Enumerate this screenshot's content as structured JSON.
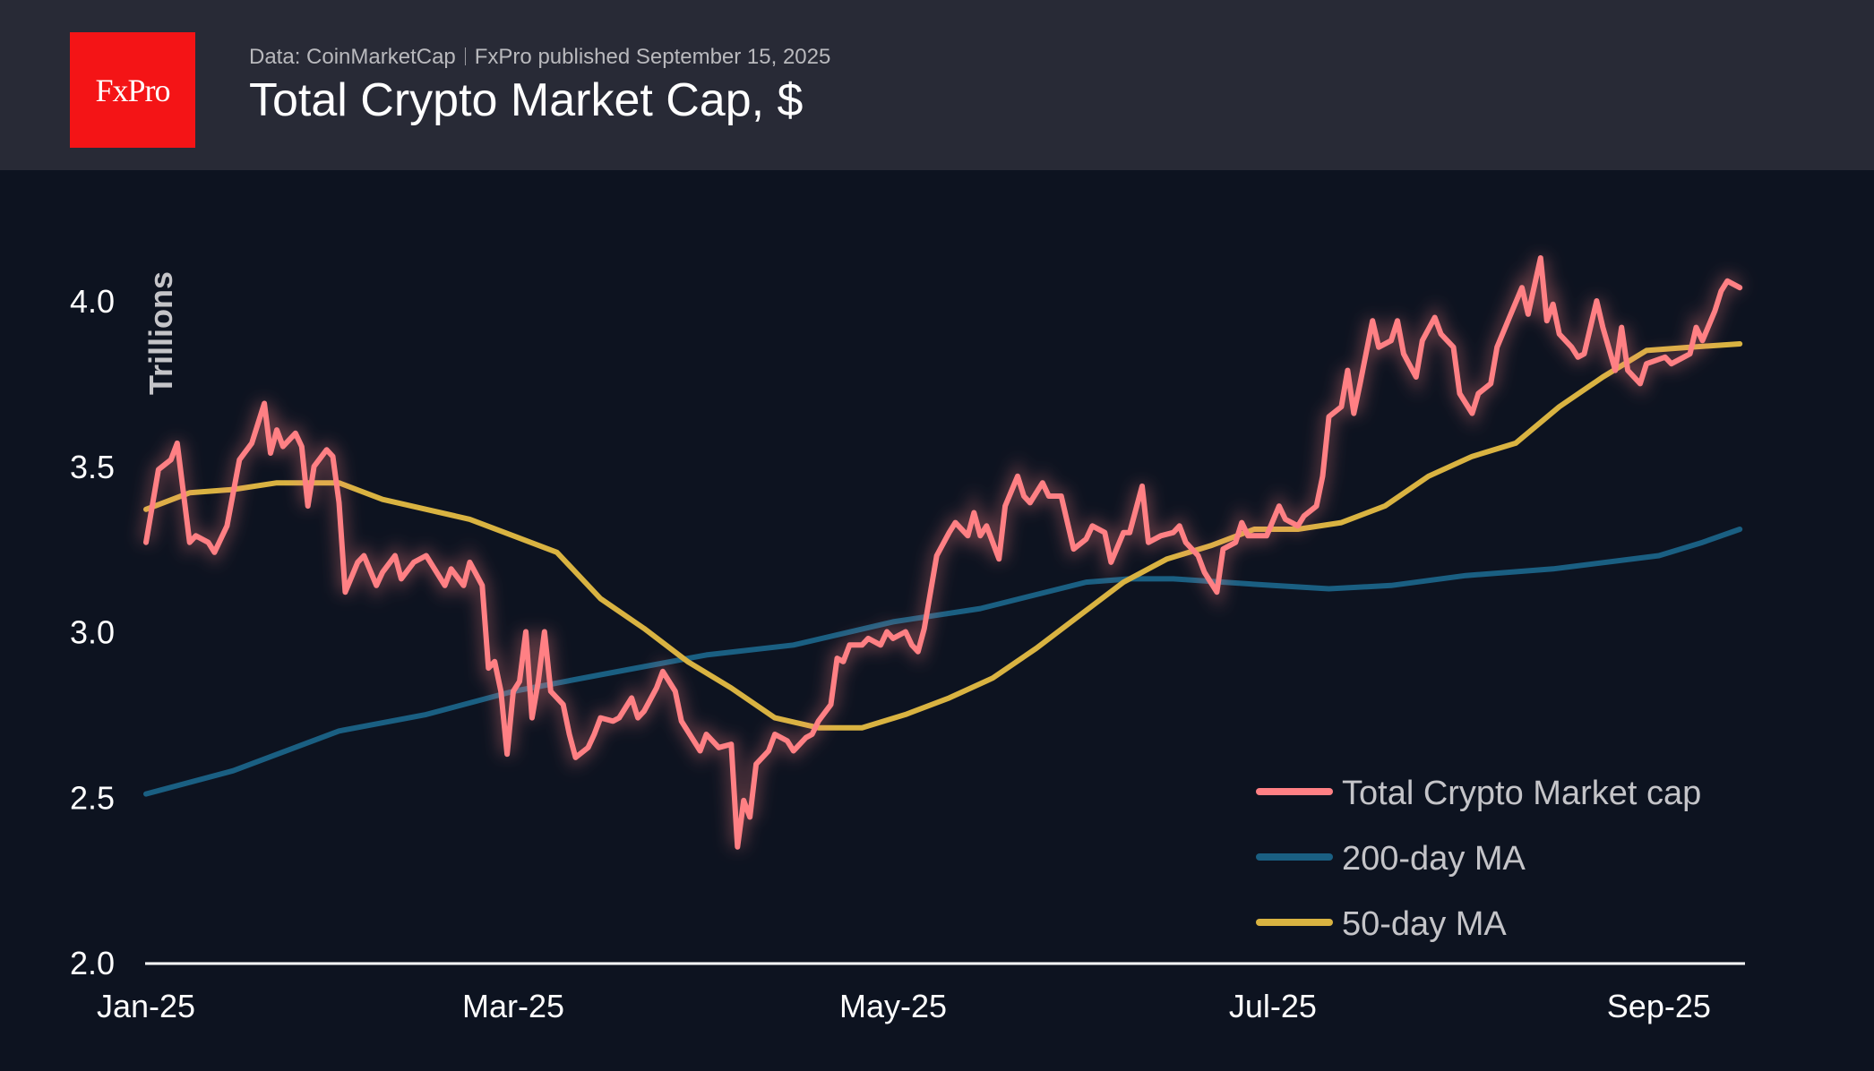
{
  "header": {
    "logo_text": "FxPro",
    "source": "Data: CoinMarketCap",
    "published": "FxPro published September 15, 2025",
    "title": "Total Crypto Market Cap, $"
  },
  "chart_data": {
    "type": "line",
    "title": "Total Crypto Market Cap, $",
    "ylabel": "Trillions",
    "xlabel": "",
    "ylim": [
      2.0,
      4.25
    ],
    "xlim": [
      "2025-01-01",
      "2025-09-14"
    ],
    "yticks": [
      "2.0",
      "2.5",
      "3.0",
      "3.5",
      "4.0"
    ],
    "xticks": [
      {
        "label": "Jan-25",
        "date": "2025-01-01"
      },
      {
        "label": "Mar-25",
        "date": "2025-03-01"
      },
      {
        "label": "May-25",
        "date": "2025-05-01"
      },
      {
        "label": "Jul-25",
        "date": "2025-07-01"
      },
      {
        "label": "Sep-25",
        "date": "2025-09-01"
      }
    ],
    "grid": false,
    "legend_position": "bottom-right",
    "series": [
      {
        "name": "Total Crypto Market cap",
        "color": "#ff8084",
        "points": [
          [
            "2025-01-01",
            3.27
          ],
          [
            "2025-01-03",
            3.49
          ],
          [
            "2025-01-05",
            3.52
          ],
          [
            "2025-01-06",
            3.57
          ],
          [
            "2025-01-08",
            3.27
          ],
          [
            "2025-01-09",
            3.29
          ],
          [
            "2025-01-11",
            3.27
          ],
          [
            "2025-01-12",
            3.24
          ],
          [
            "2025-01-14",
            3.32
          ],
          [
            "2025-01-16",
            3.52
          ],
          [
            "2025-01-18",
            3.57
          ],
          [
            "2025-01-20",
            3.69
          ],
          [
            "2025-01-21",
            3.54
          ],
          [
            "2025-01-22",
            3.61
          ],
          [
            "2025-01-23",
            3.56
          ],
          [
            "2025-01-25",
            3.6
          ],
          [
            "2025-01-26",
            3.56
          ],
          [
            "2025-01-27",
            3.38
          ],
          [
            "2025-01-28",
            3.5
          ],
          [
            "2025-01-30",
            3.55
          ],
          [
            "2025-01-31",
            3.53
          ],
          [
            "2025-02-01",
            3.39
          ],
          [
            "2025-02-02",
            3.12
          ],
          [
            "2025-02-04",
            3.21
          ],
          [
            "2025-02-05",
            3.23
          ],
          [
            "2025-02-07",
            3.14
          ],
          [
            "2025-02-08",
            3.18
          ],
          [
            "2025-02-10",
            3.23
          ],
          [
            "2025-02-11",
            3.16
          ],
          [
            "2025-02-13",
            3.21
          ],
          [
            "2025-02-15",
            3.23
          ],
          [
            "2025-02-18",
            3.14
          ],
          [
            "2025-02-19",
            3.19
          ],
          [
            "2025-02-21",
            3.14
          ],
          [
            "2025-02-22",
            3.21
          ],
          [
            "2025-02-24",
            3.14
          ],
          [
            "2025-02-25",
            2.89
          ],
          [
            "2025-02-26",
            2.91
          ],
          [
            "2025-02-27",
            2.82
          ],
          [
            "2025-02-28",
            2.63
          ],
          [
            "2025-03-01",
            2.82
          ],
          [
            "2025-03-02",
            2.85
          ],
          [
            "2025-03-03",
            3.0
          ],
          [
            "2025-03-04",
            2.74
          ],
          [
            "2025-03-05",
            2.85
          ],
          [
            "2025-03-06",
            3.0
          ],
          [
            "2025-03-07",
            2.82
          ],
          [
            "2025-03-09",
            2.78
          ],
          [
            "2025-03-10",
            2.69
          ],
          [
            "2025-03-11",
            2.62
          ],
          [
            "2025-03-13",
            2.65
          ],
          [
            "2025-03-14",
            2.69
          ],
          [
            "2025-03-15",
            2.74
          ],
          [
            "2025-03-17",
            2.73
          ],
          [
            "2025-03-18",
            2.74
          ],
          [
            "2025-03-20",
            2.8
          ],
          [
            "2025-03-21",
            2.74
          ],
          [
            "2025-03-22",
            2.76
          ],
          [
            "2025-03-24",
            2.83
          ],
          [
            "2025-03-25",
            2.88
          ],
          [
            "2025-03-27",
            2.82
          ],
          [
            "2025-03-28",
            2.73
          ],
          [
            "2025-03-30",
            2.67
          ],
          [
            "2025-03-31",
            2.64
          ],
          [
            "2025-04-01",
            2.69
          ],
          [
            "2025-04-03",
            2.65
          ],
          [
            "2025-04-05",
            2.66
          ],
          [
            "2025-04-06",
            2.35
          ],
          [
            "2025-04-07",
            2.49
          ],
          [
            "2025-04-08",
            2.44
          ],
          [
            "2025-04-09",
            2.6
          ],
          [
            "2025-04-11",
            2.64
          ],
          [
            "2025-04-12",
            2.69
          ],
          [
            "2025-04-14",
            2.67
          ],
          [
            "2025-04-15",
            2.64
          ],
          [
            "2025-04-17",
            2.68
          ],
          [
            "2025-04-18",
            2.69
          ],
          [
            "2025-04-19",
            2.73
          ],
          [
            "2025-04-21",
            2.78
          ],
          [
            "2025-04-22",
            2.92
          ],
          [
            "2025-04-23",
            2.91
          ],
          [
            "2025-04-24",
            2.96
          ],
          [
            "2025-04-26",
            2.96
          ],
          [
            "2025-04-27",
            2.98
          ],
          [
            "2025-04-29",
            2.96
          ],
          [
            "2025-04-30",
            3.0
          ],
          [
            "2025-05-01",
            2.98
          ],
          [
            "2025-05-03",
            3.0
          ],
          [
            "2025-05-04",
            2.96
          ],
          [
            "2025-05-05",
            2.94
          ],
          [
            "2025-05-06",
            3.01
          ],
          [
            "2025-05-08",
            3.23
          ],
          [
            "2025-05-10",
            3.3
          ],
          [
            "2025-05-11",
            3.33
          ],
          [
            "2025-05-13",
            3.29
          ],
          [
            "2025-05-14",
            3.36
          ],
          [
            "2025-05-15",
            3.29
          ],
          [
            "2025-05-16",
            3.32
          ],
          [
            "2025-05-18",
            3.22
          ],
          [
            "2025-05-19",
            3.38
          ],
          [
            "2025-05-21",
            3.47
          ],
          [
            "2025-05-22",
            3.41
          ],
          [
            "2025-05-23",
            3.39
          ],
          [
            "2025-05-25",
            3.45
          ],
          [
            "2025-05-26",
            3.41
          ],
          [
            "2025-05-28",
            3.41
          ],
          [
            "2025-05-30",
            3.25
          ],
          [
            "2025-06-01",
            3.28
          ],
          [
            "2025-06-02",
            3.32
          ],
          [
            "2025-06-04",
            3.3
          ],
          [
            "2025-06-05",
            3.21
          ],
          [
            "2025-06-07",
            3.3
          ],
          [
            "2025-06-08",
            3.3
          ],
          [
            "2025-06-10",
            3.44
          ],
          [
            "2025-06-11",
            3.27
          ],
          [
            "2025-06-13",
            3.29
          ],
          [
            "2025-06-15",
            3.3
          ],
          [
            "2025-06-16",
            3.32
          ],
          [
            "2025-06-17",
            3.27
          ],
          [
            "2025-06-19",
            3.23
          ],
          [
            "2025-06-20",
            3.18
          ],
          [
            "2025-06-22",
            3.12
          ],
          [
            "2025-06-23",
            3.25
          ],
          [
            "2025-06-25",
            3.27
          ],
          [
            "2025-06-26",
            3.33
          ],
          [
            "2025-06-27",
            3.29
          ],
          [
            "2025-06-29",
            3.29
          ],
          [
            "2025-06-30",
            3.29
          ],
          [
            "2025-07-02",
            3.38
          ],
          [
            "2025-07-03",
            3.34
          ],
          [
            "2025-07-05",
            3.32
          ],
          [
            "2025-07-06",
            3.35
          ],
          [
            "2025-07-08",
            3.38
          ],
          [
            "2025-07-09",
            3.47
          ],
          [
            "2025-07-10",
            3.65
          ],
          [
            "2025-07-12",
            3.68
          ],
          [
            "2025-07-13",
            3.79
          ],
          [
            "2025-07-14",
            3.66
          ],
          [
            "2025-07-15",
            3.75
          ],
          [
            "2025-07-17",
            3.94
          ],
          [
            "2025-07-18",
            3.86
          ],
          [
            "2025-07-20",
            3.88
          ],
          [
            "2025-07-21",
            3.94
          ],
          [
            "2025-07-22",
            3.84
          ],
          [
            "2025-07-24",
            3.77
          ],
          [
            "2025-07-25",
            3.88
          ],
          [
            "2025-07-27",
            3.95
          ],
          [
            "2025-07-28",
            3.9
          ],
          [
            "2025-07-30",
            3.86
          ],
          [
            "2025-07-31",
            3.72
          ],
          [
            "2025-08-02",
            3.66
          ],
          [
            "2025-08-03",
            3.72
          ],
          [
            "2025-08-05",
            3.75
          ],
          [
            "2025-08-06",
            3.86
          ],
          [
            "2025-08-08",
            3.95
          ],
          [
            "2025-08-10",
            4.04
          ],
          [
            "2025-08-11",
            3.96
          ],
          [
            "2025-08-13",
            4.13
          ],
          [
            "2025-08-14",
            3.94
          ],
          [
            "2025-08-15",
            3.99
          ],
          [
            "2025-08-16",
            3.9
          ],
          [
            "2025-08-18",
            3.86
          ],
          [
            "2025-08-19",
            3.83
          ],
          [
            "2025-08-20",
            3.84
          ],
          [
            "2025-08-22",
            4.0
          ],
          [
            "2025-08-23",
            3.92
          ],
          [
            "2025-08-25",
            3.79
          ],
          [
            "2025-08-26",
            3.92
          ],
          [
            "2025-08-27",
            3.79
          ],
          [
            "2025-08-29",
            3.75
          ],
          [
            "2025-08-30",
            3.81
          ],
          [
            "2025-09-02",
            3.83
          ],
          [
            "2025-09-03",
            3.81
          ],
          [
            "2025-09-05",
            3.83
          ],
          [
            "2025-09-06",
            3.84
          ],
          [
            "2025-09-07",
            3.92
          ],
          [
            "2025-09-08",
            3.88
          ],
          [
            "2025-09-10",
            3.97
          ],
          [
            "2025-09-11",
            4.03
          ],
          [
            "2025-09-12",
            4.06
          ],
          [
            "2025-09-14",
            4.04
          ]
        ]
      },
      {
        "name": "200-day MA",
        "color": "#1a5f82",
        "points": [
          [
            "2025-01-01",
            2.51
          ],
          [
            "2025-01-15",
            2.58
          ],
          [
            "2025-02-01",
            2.7
          ],
          [
            "2025-02-15",
            2.75
          ],
          [
            "2025-03-01",
            2.82
          ],
          [
            "2025-03-15",
            2.87
          ],
          [
            "2025-04-01",
            2.93
          ],
          [
            "2025-04-15",
            2.96
          ],
          [
            "2025-05-01",
            3.03
          ],
          [
            "2025-05-15",
            3.07
          ],
          [
            "2025-06-01",
            3.15
          ],
          [
            "2025-06-08",
            3.16
          ],
          [
            "2025-06-15",
            3.16
          ],
          [
            "2025-07-01",
            3.14
          ],
          [
            "2025-07-10",
            3.13
          ],
          [
            "2025-07-20",
            3.14
          ],
          [
            "2025-08-01",
            3.17
          ],
          [
            "2025-08-15",
            3.19
          ],
          [
            "2025-09-01",
            3.23
          ],
          [
            "2025-09-08",
            3.27
          ],
          [
            "2025-09-14",
            3.31
          ]
        ]
      },
      {
        "name": "50-day MA",
        "color": "#d9b341",
        "points": [
          [
            "2025-01-01",
            3.37
          ],
          [
            "2025-01-08",
            3.42
          ],
          [
            "2025-01-15",
            3.43
          ],
          [
            "2025-01-22",
            3.45
          ],
          [
            "2025-02-01",
            3.45
          ],
          [
            "2025-02-08",
            3.4
          ],
          [
            "2025-02-15",
            3.37
          ],
          [
            "2025-02-22",
            3.34
          ],
          [
            "2025-03-01",
            3.29
          ],
          [
            "2025-03-08",
            3.24
          ],
          [
            "2025-03-15",
            3.1
          ],
          [
            "2025-03-22",
            3.01
          ],
          [
            "2025-03-29",
            2.91
          ],
          [
            "2025-04-05",
            2.83
          ],
          [
            "2025-04-12",
            2.74
          ],
          [
            "2025-04-19",
            2.71
          ],
          [
            "2025-04-26",
            2.71
          ],
          [
            "2025-05-03",
            2.75
          ],
          [
            "2025-05-10",
            2.8
          ],
          [
            "2025-05-17",
            2.86
          ],
          [
            "2025-05-24",
            2.95
          ],
          [
            "2025-05-31",
            3.05
          ],
          [
            "2025-06-07",
            3.15
          ],
          [
            "2025-06-14",
            3.22
          ],
          [
            "2025-06-21",
            3.26
          ],
          [
            "2025-06-28",
            3.31
          ],
          [
            "2025-07-05",
            3.31
          ],
          [
            "2025-07-12",
            3.33
          ],
          [
            "2025-07-19",
            3.38
          ],
          [
            "2025-07-26",
            3.47
          ],
          [
            "2025-08-02",
            3.53
          ],
          [
            "2025-08-09",
            3.57
          ],
          [
            "2025-08-16",
            3.68
          ],
          [
            "2025-08-23",
            3.77
          ],
          [
            "2025-08-30",
            3.85
          ],
          [
            "2025-09-06",
            3.86
          ],
          [
            "2025-09-14",
            3.87
          ]
        ]
      }
    ]
  }
}
